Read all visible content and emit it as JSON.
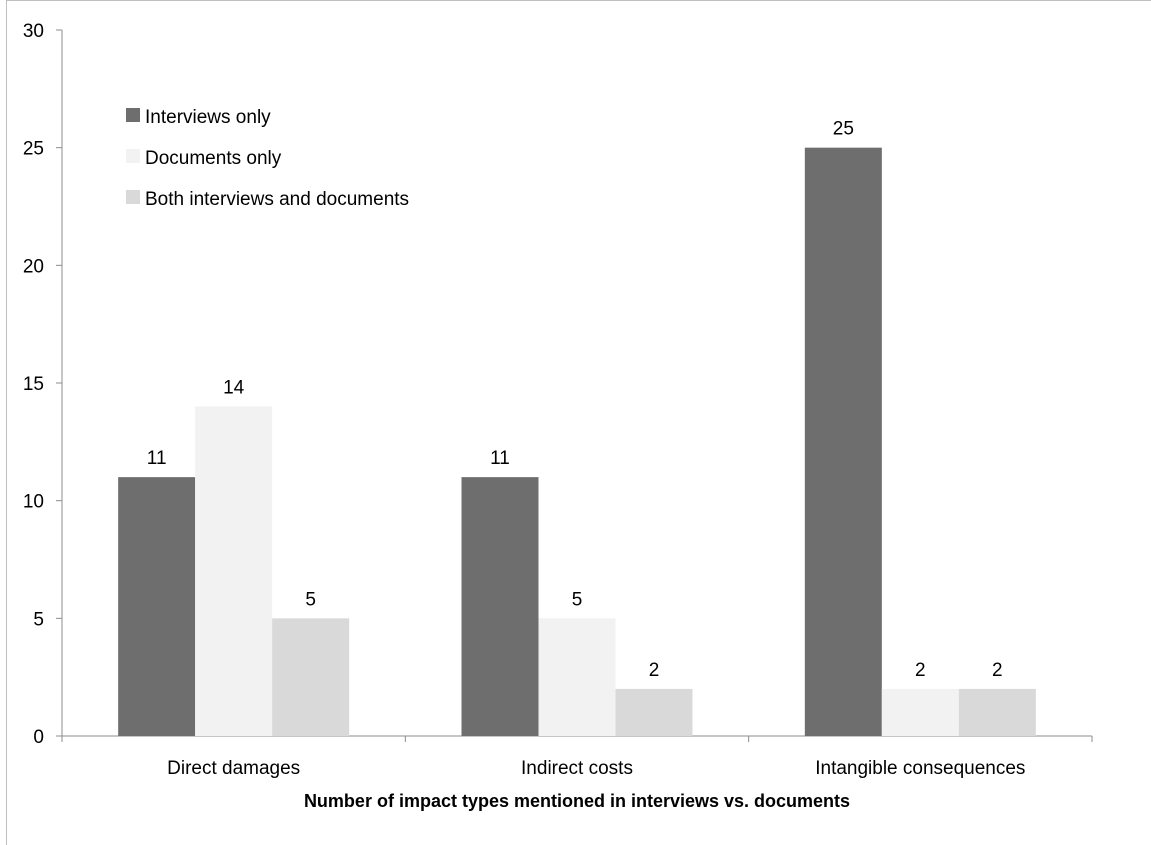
{
  "chart_data": {
    "type": "bar",
    "title": "",
    "xlabel": "Number of impact types mentioned in interviews vs. documents",
    "ylabel": "",
    "ylim": [
      0,
      30
    ],
    "yticks": [
      0,
      5,
      10,
      15,
      20,
      25,
      30
    ],
    "categories": [
      "Direct damages",
      "Indirect costs",
      "Intangible consequences"
    ],
    "series": [
      {
        "name": "Interviews only",
        "values": [
          11,
          11,
          25
        ],
        "color": "#6e6e6e"
      },
      {
        "name": "Documents only",
        "values": [
          14,
          5,
          2
        ],
        "color": "#f2f2f2"
      },
      {
        "name": "Both interviews and documents",
        "values": [
          5,
          2,
          2
        ],
        "color": "#d9d9d9"
      }
    ],
    "legend_position": "top-left",
    "data_labels": true,
    "grid": false
  }
}
